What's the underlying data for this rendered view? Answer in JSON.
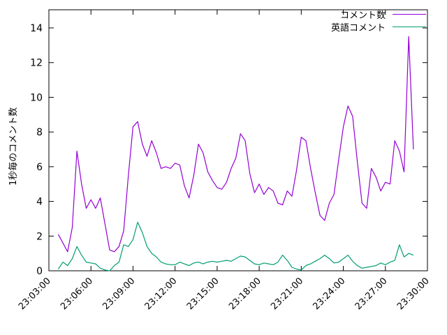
{
  "chart_data": {
    "type": "line",
    "title": "",
    "xlabel": "",
    "ylabel": "1秒毎のコメント数",
    "grid": false,
    "legend_position": "top-right",
    "ylim": [
      0,
      14
    ],
    "y_ticks": [
      0,
      2,
      4,
      6,
      8,
      10,
      12,
      14
    ],
    "x_range": [
      "23:03:00",
      "23:30:00"
    ],
    "x_ticks": [
      "23:03:00",
      "23:06:00",
      "23:09:00",
      "23:12:00",
      "23:15:00",
      "23:18:00",
      "23:21:00",
      "23:24:00",
      "23:27:00",
      "23:30:00"
    ],
    "x": [
      "23:03:40",
      "23:04:00",
      "23:04:20",
      "23:04:40",
      "23:05:00",
      "23:05:20",
      "23:05:40",
      "23:06:00",
      "23:06:20",
      "23:06:40",
      "23:07:00",
      "23:07:20",
      "23:07:40",
      "23:08:00",
      "23:08:20",
      "23:08:40",
      "23:09:00",
      "23:09:20",
      "23:09:40",
      "23:10:00",
      "23:10:20",
      "23:10:40",
      "23:11:00",
      "23:11:20",
      "23:11:40",
      "23:12:00",
      "23:12:20",
      "23:12:40",
      "23:13:00",
      "23:13:20",
      "23:13:40",
      "23:14:00",
      "23:14:20",
      "23:14:40",
      "23:15:00",
      "23:15:20",
      "23:15:40",
      "23:16:00",
      "23:16:20",
      "23:16:40",
      "23:17:00",
      "23:17:20",
      "23:17:40",
      "23:18:00",
      "23:18:20",
      "23:18:40",
      "23:19:00",
      "23:19:20",
      "23:19:40",
      "23:20:00",
      "23:20:20",
      "23:20:40",
      "23:21:00",
      "23:21:20",
      "23:21:40",
      "23:22:00",
      "23:22:20",
      "23:22:40",
      "23:23:00",
      "23:23:20",
      "23:23:40",
      "23:24:00",
      "23:24:20",
      "23:24:40",
      "23:25:00",
      "23:25:20",
      "23:25:40",
      "23:26:00",
      "23:26:20",
      "23:26:40",
      "23:27:00",
      "23:27:20",
      "23:27:40",
      "23:28:00",
      "23:28:20",
      "23:28:40",
      "23:29:00"
    ],
    "series": [
      {
        "name": "コメント数",
        "color": "#9400D3",
        "values": [
          2.1,
          1.6,
          1.1,
          2.5,
          6.9,
          5.0,
          3.6,
          4.1,
          3.6,
          4.2,
          2.7,
          1.2,
          1.1,
          1.4,
          2.3,
          5.5,
          8.3,
          8.6,
          7.3,
          6.6,
          7.5,
          6.8,
          5.9,
          6.0,
          5.9,
          6.2,
          6.1,
          4.9,
          4.2,
          5.5,
          7.3,
          6.8,
          5.7,
          5.2,
          4.8,
          4.7,
          5.1,
          5.9,
          6.5,
          7.9,
          7.5,
          5.6,
          4.5,
          5.0,
          4.4,
          4.8,
          4.6,
          3.9,
          3.8,
          4.6,
          4.3,
          5.8,
          7.7,
          7.5,
          5.9,
          4.5,
          3.2,
          2.9,
          3.9,
          4.4,
          6.4,
          8.3,
          9.5,
          8.9,
          6.3,
          3.9,
          3.6,
          5.9,
          5.4,
          4.6,
          5.1,
          5.0,
          7.5,
          6.9,
          5.7,
          13.5,
          7.0
        ]
      },
      {
        "name": "英語コメント",
        "color": "#009E73",
        "values": [
          0.1,
          0.5,
          0.3,
          0.7,
          1.4,
          0.9,
          0.5,
          0.45,
          0.4,
          0.15,
          0.05,
          0.0,
          0.3,
          0.5,
          1.5,
          1.4,
          1.8,
          2.8,
          2.2,
          1.4,
          1.0,
          0.8,
          0.5,
          0.4,
          0.35,
          0.35,
          0.5,
          0.4,
          0.3,
          0.45,
          0.5,
          0.4,
          0.5,
          0.55,
          0.5,
          0.55,
          0.6,
          0.55,
          0.7,
          0.85,
          0.8,
          0.6,
          0.4,
          0.35,
          0.45,
          0.4,
          0.35,
          0.5,
          0.9,
          0.6,
          0.2,
          0.1,
          0.05,
          0.3,
          0.4,
          0.55,
          0.7,
          0.9,
          0.7,
          0.45,
          0.5,
          0.7,
          0.9,
          0.55,
          0.3,
          0.15,
          0.2,
          0.25,
          0.3,
          0.45,
          0.35,
          0.5,
          0.6,
          1.5,
          0.8,
          1.0,
          0.9
        ]
      }
    ]
  }
}
